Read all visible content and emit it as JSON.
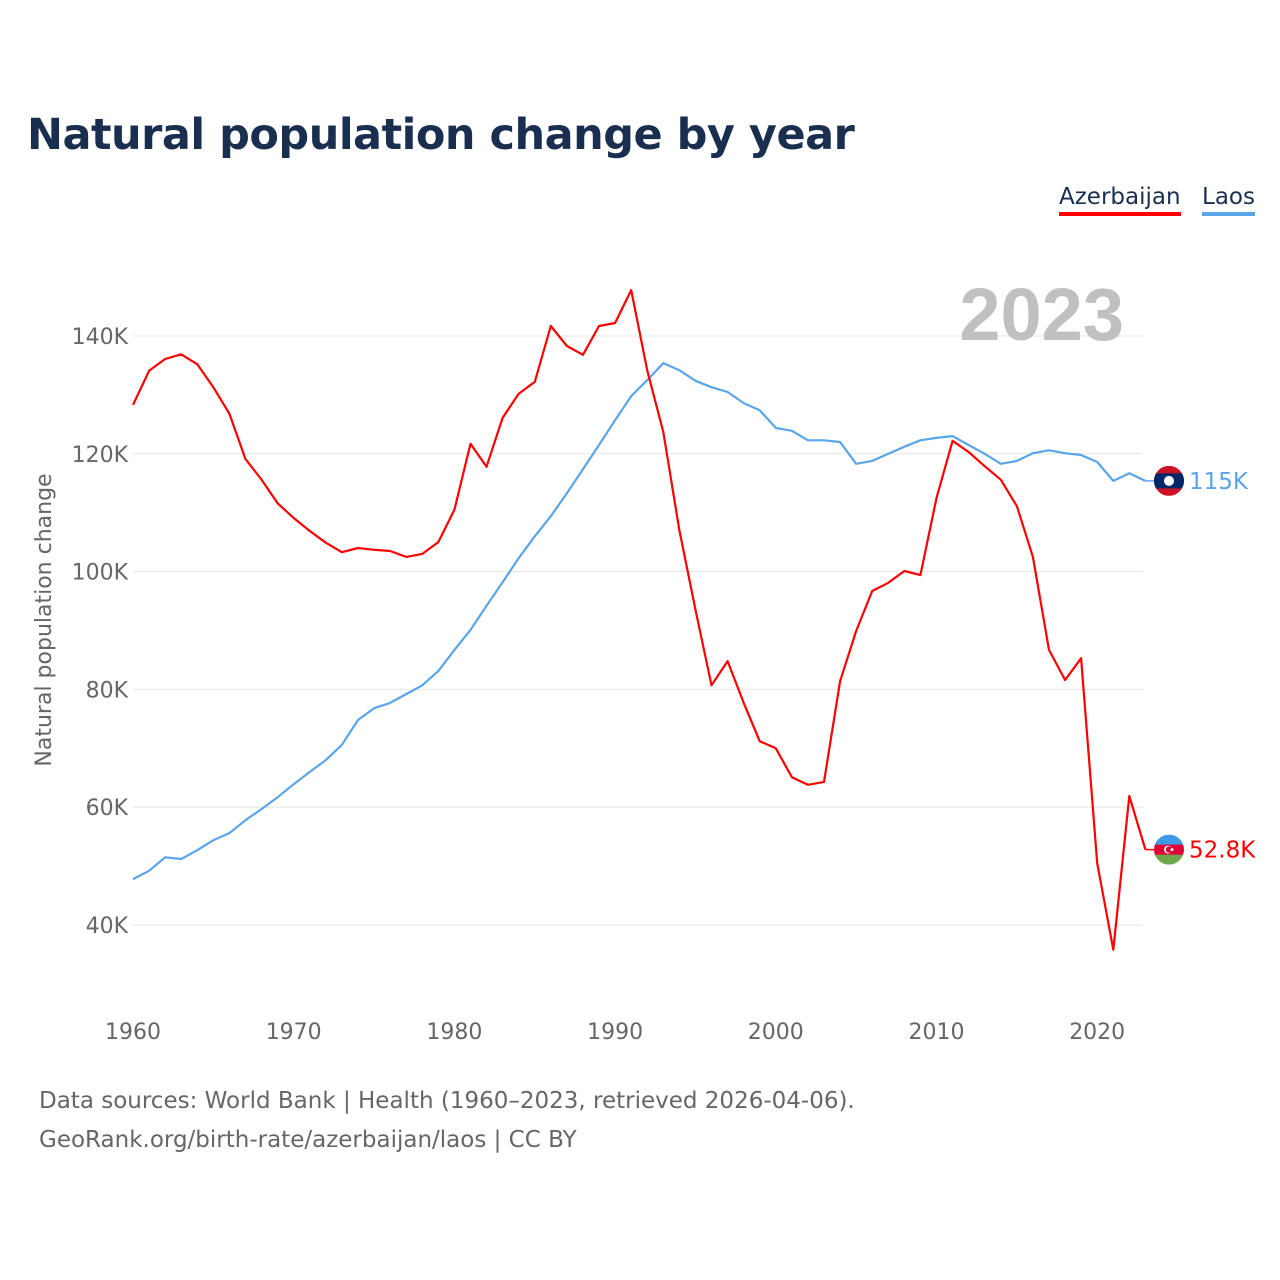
{
  "title": "Natural population change by year",
  "legend": [
    {
      "name": "Azerbaijan",
      "color": "#ff0000"
    },
    {
      "name": "Laos",
      "color": "#5aa5ea"
    }
  ],
  "footer": {
    "line1": "Data sources: World Bank | Health (1960–2023, retrieved 2026-04-06).",
    "line2": "GeoRank.org/birth-rate/azerbaijan/laos | CC BY"
  },
  "chart_data": {
    "type": "line",
    "title": "Natural population change by year",
    "ylabel": "Natural population change",
    "xlabel": "",
    "year_watermark": "2023",
    "xlim": [
      1960,
      2023
    ],
    "ylim": [
      28,
      150
    ],
    "x_ticks": [
      1960,
      1970,
      1980,
      1990,
      2000,
      2010,
      2020
    ],
    "y_ticks": [
      40,
      60,
      80,
      100,
      120,
      140
    ],
    "y_tick_labels": [
      "40K",
      "60K",
      "80K",
      "100K",
      "120K",
      "140K"
    ],
    "grid": true,
    "legend_position": "top-right",
    "x_start": 1960,
    "series": [
      {
        "name": "Azerbaijan",
        "color": "#ff0000",
        "end_label": "52.8K",
        "flag": "azerbaijan-flag",
        "values": [
          128.3,
          134.1,
          136.1,
          136.9,
          135.2,
          131.3,
          126.8,
          119.1,
          115.6,
          111.6,
          109.1,
          106.9,
          104.9,
          103.3,
          104.0,
          103.7,
          103.5,
          102.5,
          103.0,
          105.0,
          110.5,
          121.7,
          117.8,
          126.1,
          130.2,
          132.2,
          141.7,
          138.3,
          136.8,
          141.7,
          142.2,
          147.8,
          134.2,
          123.7,
          107.0,
          93.5,
          80.7,
          84.8,
          77.7,
          71.2,
          70.0,
          65.1,
          63.8,
          64.3,
          81.4,
          89.9,
          96.7,
          98.1,
          100.1,
          99.4,
          112.5,
          122.2,
          120.3,
          117.9,
          115.6,
          111.1,
          102.5,
          86.7,
          81.6,
          85.3,
          50.5,
          35.8,
          61.9,
          52.8
        ]
      },
      {
        "name": "Laos",
        "color": "#5aa5ea",
        "end_label": "115K",
        "flag": "laos-flag",
        "values": [
          47.8,
          49.2,
          51.5,
          51.2,
          52.7,
          54.4,
          55.6,
          57.8,
          59.7,
          61.7,
          63.9,
          66.0,
          68.0,
          70.6,
          74.8,
          76.8,
          77.7,
          79.2,
          80.7,
          83.1,
          86.7,
          90.1,
          94.2,
          98.2,
          102.3,
          106.0,
          109.4,
          113.3,
          117.4,
          121.5,
          125.7,
          129.8,
          132.5,
          135.4,
          134.2,
          132.4,
          131.3,
          130.5,
          128.6,
          127.4,
          124.4,
          123.9,
          122.3,
          122.3,
          122.0,
          118.3,
          118.8,
          120.0,
          121.2,
          122.3,
          122.7,
          123.0,
          121.5,
          120.0,
          118.3,
          118.8,
          120.1,
          120.6,
          120.1,
          119.8,
          118.6,
          115.4,
          116.7,
          115.4
        ]
      }
    ]
  }
}
